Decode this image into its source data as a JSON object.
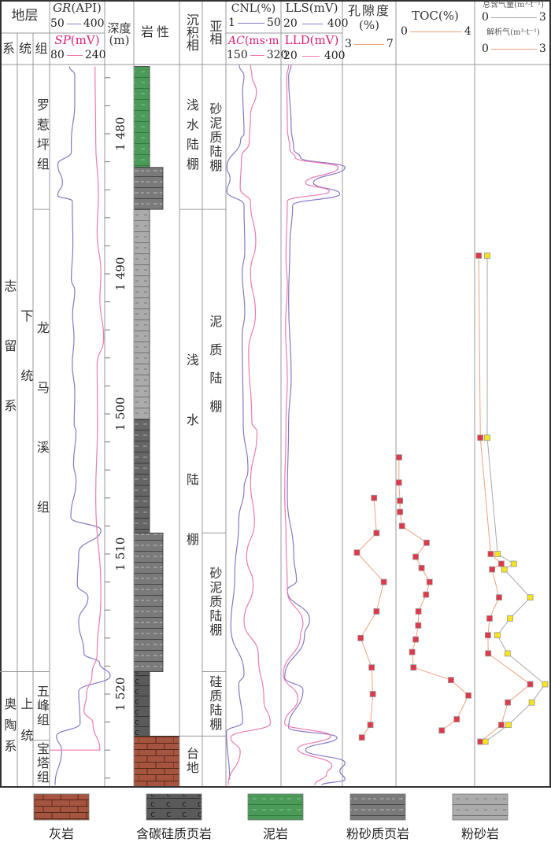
{
  "header": {
    "strata": "地层",
    "system": "系",
    "series": "统",
    "formation": "组",
    "depth": "深度",
    "depth_unit": "(m)",
    "lithology": "岩性",
    "facies": "沉积相",
    "subfacies": "亚相",
    "gr": {
      "name": "GR",
      "unit": "(API)",
      "min": "50",
      "max": "400"
    },
    "sp": {
      "name": "SP",
      "unit": "(mV)",
      "min": "80",
      "max": "240"
    },
    "cnl": {
      "name": "CNL(%)",
      "min": "1",
      "max": "50"
    },
    "ac": {
      "name": "AC",
      "unit": "(ms·m",
      "min": "150",
      "max": "320"
    },
    "lls": {
      "name": "LLS(mV)",
      "min": "20",
      "max": "400"
    },
    "lld": {
      "name": "LLD(mV)",
      "min": "20",
      "max": "400"
    },
    "porosity": {
      "name": "孔隙度",
      "unit": "(%)",
      "min": "3",
      "max": "7"
    },
    "toc": {
      "name": "TOC(%)",
      "min": "0",
      "max": "4"
    },
    "total_gas": {
      "name": "总含气量(m³·t⁻¹)",
      "min": "0",
      "max": "3"
    },
    "desorbed_gas": {
      "name": "解析气(m³·t⁻¹)",
      "min": "0",
      "max": "3"
    }
  },
  "strata": {
    "systems": [
      {
        "label": "志留系",
        "top": 1475.2,
        "base": 1518.4
      },
      {
        "label": "奥陶系",
        "top": 1518.4,
        "base": 1526.6
      }
    ],
    "series": [
      {
        "label": "下统",
        "top": 1475.2,
        "base": 1518.4
      },
      {
        "label": "上统",
        "top": 1518.4,
        "base": 1526.6
      }
    ],
    "formations": [
      {
        "label": "罗惹坪组",
        "top": 1475.2,
        "base": 1485.4
      },
      {
        "label": "龙马溪组",
        "top": 1485.4,
        "base": 1518.4
      },
      {
        "label": "五峰组",
        "top": 1518.4,
        "base": 1523.3
      },
      {
        "label": "宝塔组",
        "top": 1523.3,
        "base": 1526.6
      }
    ],
    "facies": [
      {
        "label": "浅水陆棚",
        "top": 1475.2,
        "base": 1485.4
      },
      {
        "label": "浅水陆棚",
        "top": 1485.4,
        "base": 1523.0
      },
      {
        "label": "台地",
        "top": 1523.0,
        "base": 1526.6
      }
    ],
    "subfacies": [
      {
        "label": "砂泥质陆棚",
        "top": 1475.2,
        "base": 1485.4
      },
      {
        "label": "泥质陆棚",
        "top": 1485.4,
        "base": 1508.5
      },
      {
        "label": "砂泥质陆棚",
        "top": 1508.5,
        "base": 1518.4
      },
      {
        "label": "硅质陆棚",
        "top": 1518.4,
        "base": 1523.0
      },
      {
        "label": "",
        "top": 1523.0,
        "base": 1526.6
      }
    ]
  },
  "lithology": [
    {
      "type": "mudstone",
      "top": 1475.2,
      "base": 1482.4
    },
    {
      "type": "silty-shale",
      "top": 1482.4,
      "base": 1485.4
    },
    {
      "type": "siltstone",
      "top": 1485.4,
      "base": 1500.4
    },
    {
      "type": "silty-shale-dark",
      "top": 1500.4,
      "base": 1508.5
    },
    {
      "type": "silty-shale",
      "top": 1508.5,
      "base": 1518.4
    },
    {
      "type": "carbonaceous-siliceous-shale",
      "top": 1518.4,
      "base": 1523.0
    },
    {
      "type": "limestone",
      "top": 1523.0,
      "base": 1526.6
    }
  ],
  "legend": [
    {
      "type": "limestone",
      "label": "灰岩"
    },
    {
      "type": "carbonaceous-siliceous-shale",
      "label": "含碳硅质页岩"
    },
    {
      "type": "mudstone",
      "label": "泥岩"
    },
    {
      "type": "silty-shale",
      "label": "粉砂质页岩"
    },
    {
      "type": "siltstone",
      "label": "粉砂岩"
    }
  ],
  "colors": {
    "purple": "#8878c8",
    "pink": "#f07ab0",
    "marker_red": "#e0384a",
    "marker_yellow": "#f7e41a",
    "line_salmon": "#f5a07c",
    "line_grey": "#a8a8a8"
  },
  "chart_data": {
    "type": "well-log",
    "depth_axis": {
      "label": "深度(m)",
      "range": [
        1475.2,
        1526.6
      ],
      "ticks": [
        "1 480",
        "1 490",
        "1 500",
        "1 510",
        "1 520"
      ],
      "tick_values": [
        1480,
        1490,
        1500,
        1510,
        1520
      ],
      "minor_step": 2
    },
    "tracks": [
      {
        "name": "GR",
        "range": [
          50,
          400
        ],
        "color": "purple",
        "points": [
          [
            1475.2,
            176
          ],
          [
            1475.8,
            210
          ],
          [
            1477.8,
            210
          ],
          [
            1480.6,
            188
          ],
          [
            1481.3,
            188
          ],
          [
            1482.2,
            102
          ],
          [
            1483.5,
            132
          ],
          [
            1484.4,
            102
          ],
          [
            1484.8,
            194
          ],
          [
            1488.0,
            198
          ],
          [
            1490.4,
            188
          ],
          [
            1491.2,
            210
          ],
          [
            1492.9,
            196
          ],
          [
            1494.6,
            205
          ],
          [
            1496.5,
            194
          ],
          [
            1498.4,
            210
          ],
          [
            1500.8,
            206
          ],
          [
            1501.2,
            218
          ],
          [
            1503.6,
            202
          ],
          [
            1504.7,
            218
          ],
          [
            1507.4,
            185
          ],
          [
            1508.3,
            376
          ],
          [
            1509.9,
            235
          ],
          [
            1512.2,
            226
          ],
          [
            1513.1,
            294
          ],
          [
            1514.8,
            235
          ],
          [
            1517.1,
            268
          ],
          [
            1517.8,
            368
          ],
          [
            1518.7,
            435
          ],
          [
            1519.8,
            235
          ],
          [
            1522.1,
            244
          ],
          [
            1523.0,
            94
          ],
          [
            1524.0,
            126
          ],
          [
            1526.5,
            85
          ]
        ]
      },
      {
        "name": "SP",
        "range": [
          80,
          240
        ],
        "color": "pink",
        "points": [
          [
            1475.2,
            212
          ],
          [
            1480.6,
            214
          ],
          [
            1484.3,
            222
          ],
          [
            1487.1,
            218
          ],
          [
            1489.9,
            229
          ],
          [
            1491.8,
            226
          ],
          [
            1494.6,
            237
          ],
          [
            1496.5,
            218
          ],
          [
            1500.8,
            219
          ],
          [
            1505.8,
            214
          ],
          [
            1513.0,
            229
          ],
          [
            1517.1,
            218
          ],
          [
            1518.6,
            203
          ],
          [
            1520.1,
            187
          ],
          [
            1521.2,
            180
          ],
          [
            1522.1,
            206
          ],
          [
            1524.0,
            226
          ],
          [
            1524.0,
            81
          ]
        ]
      },
      {
        "name": "CNL",
        "range": [
          1,
          50
        ],
        "color": "purple",
        "points": [
          [
            1475.1,
            12.9
          ],
          [
            1475.9,
            17.1
          ],
          [
            1476.8,
            15.9
          ],
          [
            1480.0,
            17.1
          ],
          [
            1480.4,
            14.1
          ],
          [
            1482.4,
            1.9
          ],
          [
            1483.2,
            4.7
          ],
          [
            1484.1,
            1.9
          ],
          [
            1485.1,
            17.1
          ],
          [
            1488.4,
            17.8
          ],
          [
            1489.9,
            15.5
          ],
          [
            1492.8,
            17.8
          ],
          [
            1494.4,
            15.5
          ],
          [
            1500.6,
            16.4
          ],
          [
            1504.0,
            20.6
          ],
          [
            1505.3,
            17.1
          ],
          [
            1507.7,
            12.4
          ],
          [
            1511.5,
            8.9
          ],
          [
            1515.2,
            5.4
          ],
          [
            1518.6,
            17.1
          ],
          [
            1519.3,
            12.4
          ],
          [
            1522.0,
            15.9
          ],
          [
            1522.7,
            1.5
          ],
          [
            1526.1,
            4.3
          ]
        ]
      },
      {
        "name": "AC",
        "range": [
          150,
          320
        ],
        "color": "pink",
        "points": [
          [
            1475.1,
            226
          ],
          [
            1475.8,
            230
          ],
          [
            1477.0,
            244
          ],
          [
            1478.7,
            226
          ],
          [
            1480.6,
            222
          ],
          [
            1481.7,
            198
          ],
          [
            1483.9,
            194
          ],
          [
            1484.9,
            226
          ],
          [
            1487.7,
            242
          ],
          [
            1489.9,
            226
          ],
          [
            1492.8,
            241
          ],
          [
            1495.6,
            220
          ],
          [
            1500.6,
            230
          ],
          [
            1501.3,
            246
          ],
          [
            1504.9,
            226
          ],
          [
            1507.7,
            238
          ],
          [
            1510.2,
            214
          ],
          [
            1512.2,
            234
          ],
          [
            1514.8,
            206
          ],
          [
            1517.2,
            250
          ],
          [
            1520.4,
            267
          ],
          [
            1522.1,
            287
          ],
          [
            1523.1,
            165
          ],
          [
            1524.1,
            194
          ],
          [
            1526.5,
            157
          ]
        ]
      },
      {
        "name": "LLS",
        "range": [
          20,
          400
        ],
        "color": "purple",
        "points": [
          [
            1475.1,
            83
          ],
          [
            1475.9,
            67
          ],
          [
            1479.6,
            83
          ],
          [
            1481.1,
            99
          ],
          [
            1481.7,
            140
          ],
          [
            1482.4,
            416
          ],
          [
            1483.5,
            221
          ],
          [
            1484.3,
            384
          ],
          [
            1485.1,
            92
          ],
          [
            1488.0,
            75
          ],
          [
            1491.8,
            67
          ],
          [
            1497.4,
            83
          ],
          [
            1500.6,
            67
          ],
          [
            1505.8,
            59
          ],
          [
            1510.2,
            99
          ],
          [
            1511.9,
            116
          ],
          [
            1512.6,
            59
          ],
          [
            1514.7,
            197
          ],
          [
            1515.8,
            165
          ],
          [
            1518.8,
            43
          ],
          [
            1519.7,
            156
          ],
          [
            1522.4,
            67
          ],
          [
            1523.1,
            367
          ],
          [
            1524.0,
            172
          ],
          [
            1524.9,
            416
          ],
          [
            1525.5,
            384
          ],
          [
            1526.1,
            416
          ],
          [
            1526.5,
            271
          ]
        ]
      },
      {
        "name": "LLD",
        "range": [
          20,
          400
        ],
        "color": "pink",
        "points": [
          [
            1475.1,
            67
          ],
          [
            1475.9,
            56
          ],
          [
            1479.6,
            59
          ],
          [
            1481.1,
            75
          ],
          [
            1481.7,
            108
          ],
          [
            1482.4,
            375
          ],
          [
            1483.5,
            172
          ],
          [
            1484.1,
            319
          ],
          [
            1484.8,
            59
          ],
          [
            1488.8,
            51
          ],
          [
            1490.8,
            59
          ],
          [
            1493.7,
            48
          ],
          [
            1497.4,
            59
          ],
          [
            1500.6,
            51
          ],
          [
            1505.8,
            43
          ],
          [
            1508.7,
            51
          ],
          [
            1512.6,
            59
          ],
          [
            1515.0,
            156
          ],
          [
            1515.8,
            140
          ],
          [
            1518.6,
            35
          ],
          [
            1520.3,
            124
          ],
          [
            1522.1,
            43
          ],
          [
            1523.0,
            327
          ],
          [
            1523.9,
            124
          ],
          [
            1525.1,
            335
          ],
          [
            1525.7,
            302
          ],
          [
            1526.5,
            229
          ]
        ]
      },
      {
        "name": "孔隙度",
        "range": [
          3,
          7
        ],
        "color": "marker_red",
        "points": [
          [
            1506.0,
            5.4
          ],
          [
            1508.5,
            5.6
          ],
          [
            1509.9,
            4.0
          ],
          [
            1512.0,
            6.2
          ],
          [
            1514.1,
            5.6
          ],
          [
            1516.0,
            4.3
          ],
          [
            1518.1,
            5.2
          ],
          [
            1520.0,
            5.3
          ],
          [
            1522.2,
            5.1
          ],
          [
            1523.1,
            4.4
          ]
        ]
      },
      {
        "name": "TOC",
        "range": [
          0,
          4
        ],
        "color": "marker_red",
        "points": [
          [
            1503.1,
            0.04
          ],
          [
            1504.9,
            0.03
          ],
          [
            1506.2,
            0.09
          ],
          [
            1507.0,
            0.09
          ],
          [
            1508.0,
            0.2
          ],
          [
            1509.2,
            1.53
          ],
          [
            1510.2,
            0.94
          ],
          [
            1511.0,
            1.26
          ],
          [
            1512.0,
            1.69
          ],
          [
            1512.9,
            1.5
          ],
          [
            1514.1,
            1.09
          ],
          [
            1515.1,
            1.08
          ],
          [
            1516.1,
            0.94
          ],
          [
            1517.0,
            0.75
          ],
          [
            1518.1,
            0.82
          ],
          [
            1519.0,
            2.85
          ],
          [
            1520.1,
            3.79
          ],
          [
            1521.8,
            3.16
          ],
          [
            1522.6,
            2.35
          ]
        ]
      },
      {
        "name": "解析气",
        "range": [
          0,
          3
        ],
        "color": "marker_red",
        "points": [
          [
            1488.7,
            0.04
          ],
          [
            1501.7,
            0.11
          ],
          [
            1510.0,
            0.56
          ],
          [
            1510.7,
            1.02
          ],
          [
            1511.1,
            0.62
          ],
          [
            1513.1,
            0.92
          ],
          [
            1514.6,
            0.51
          ],
          [
            1515.8,
            0.44
          ],
          [
            1517.1,
            0.45
          ],
          [
            1519.3,
            2.27
          ],
          [
            1520.6,
            1.3
          ],
          [
            1522.2,
            1.02
          ],
          [
            1523.4,
            0.11
          ]
        ]
      },
      {
        "name": "总含气量",
        "range": [
          0,
          3
        ],
        "color": "marker_yellow",
        "points": [
          [
            1488.7,
            0.41
          ],
          [
            1501.7,
            0.41
          ],
          [
            1510.0,
            0.86
          ],
          [
            1510.7,
            1.56
          ],
          [
            1511.1,
            1.15
          ],
          [
            1513.1,
            2.27
          ],
          [
            1514.6,
            1.4
          ],
          [
            1515.8,
            0.85
          ],
          [
            1517.1,
            1.29
          ],
          [
            1519.3,
            2.91
          ],
          [
            1520.6,
            2.34
          ],
          [
            1522.2,
            1.33
          ],
          [
            1523.4,
            0.33
          ]
        ]
      }
    ]
  }
}
